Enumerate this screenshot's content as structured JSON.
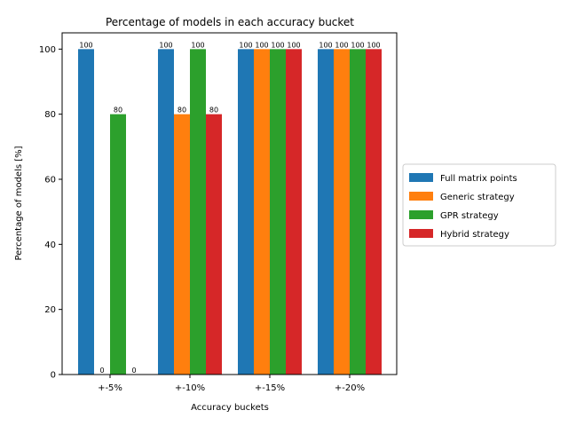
{
  "chart_data": {
    "type": "bar",
    "title": "Percentage of models in each accuracy bucket",
    "xlabel": "Accuracy buckets",
    "ylabel": "Percentage of models [%]",
    "categories": [
      "+-5%",
      "+-10%",
      "+-15%",
      "+-20%"
    ],
    "ylim": [
      0,
      105
    ],
    "yticks": [
      0,
      20,
      40,
      60,
      80,
      100
    ],
    "grid": false,
    "legend_position": "center-right outside",
    "series": [
      {
        "name": "Full matrix points",
        "color": "#1f77b4",
        "values": [
          100,
          100,
          100,
          100
        ]
      },
      {
        "name": "Generic strategy",
        "color": "#ff7f0e",
        "values": [
          0,
          80,
          100,
          100
        ]
      },
      {
        "name": "GPR strategy",
        "color": "#2ca02c",
        "values": [
          80,
          100,
          100,
          100
        ]
      },
      {
        "name": "Hybrid strategy",
        "color": "#d62728",
        "values": [
          0,
          80,
          100,
          100
        ]
      }
    ]
  }
}
